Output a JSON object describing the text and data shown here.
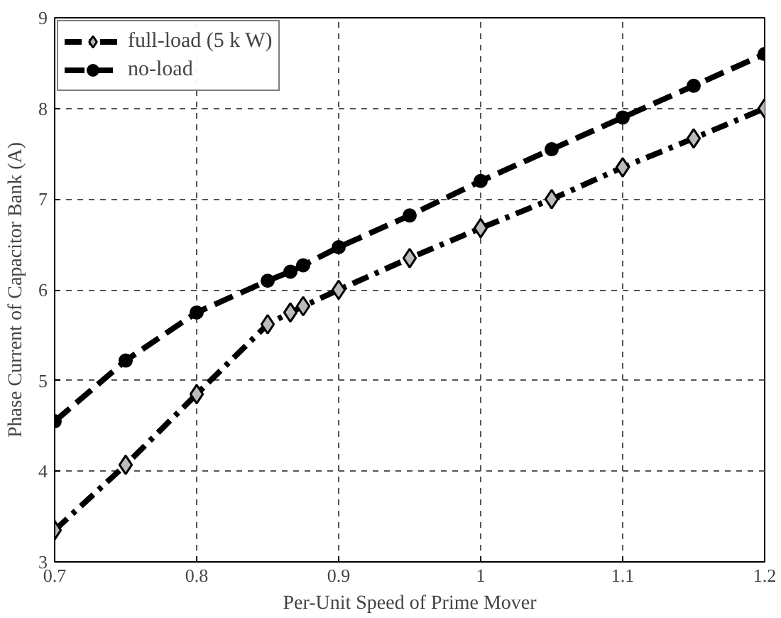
{
  "chart_data": {
    "type": "line",
    "xlabel": "Per-Unit Speed of Prime Mover",
    "ylabel": "Phase Current of Capacitor Bank (A)",
    "xlim": [
      0.7,
      1.2
    ],
    "xticks": [
      0.7,
      0.8,
      0.9,
      1,
      1.1,
      1.2
    ],
    "ylim": [
      3,
      9
    ],
    "yticks": [
      3,
      4,
      5,
      6,
      7,
      8,
      9
    ],
    "grid": true,
    "legend": "top left",
    "series": [
      {
        "name": "full-load (5 k W)",
        "color": "#000000",
        "marker": "diamond",
        "line_style": "dashdot",
        "x": [
          0.7,
          0.75,
          0.8,
          0.85,
          0.866,
          0.875,
          0.9,
          0.95,
          1.0,
          1.05,
          1.1,
          1.15,
          1.2
        ],
        "values": [
          3.35,
          4.07,
          4.85,
          5.62,
          5.75,
          5.82,
          6.0,
          6.35,
          6.68,
          7.0,
          7.35,
          7.67,
          8.0
        ]
      },
      {
        "name": "no-load",
        "color": "#000000",
        "marker": "circle",
        "line_style": "dashed",
        "x": [
          0.7,
          0.75,
          0.8,
          0.85,
          0.866,
          0.875,
          0.9,
          0.95,
          1.0,
          1.05,
          1.1,
          1.15,
          1.2
        ],
        "values": [
          4.55,
          5.22,
          5.75,
          6.1,
          6.2,
          6.27,
          6.47,
          6.82,
          7.2,
          7.55,
          7.9,
          8.25,
          8.6
        ]
      }
    ]
  }
}
